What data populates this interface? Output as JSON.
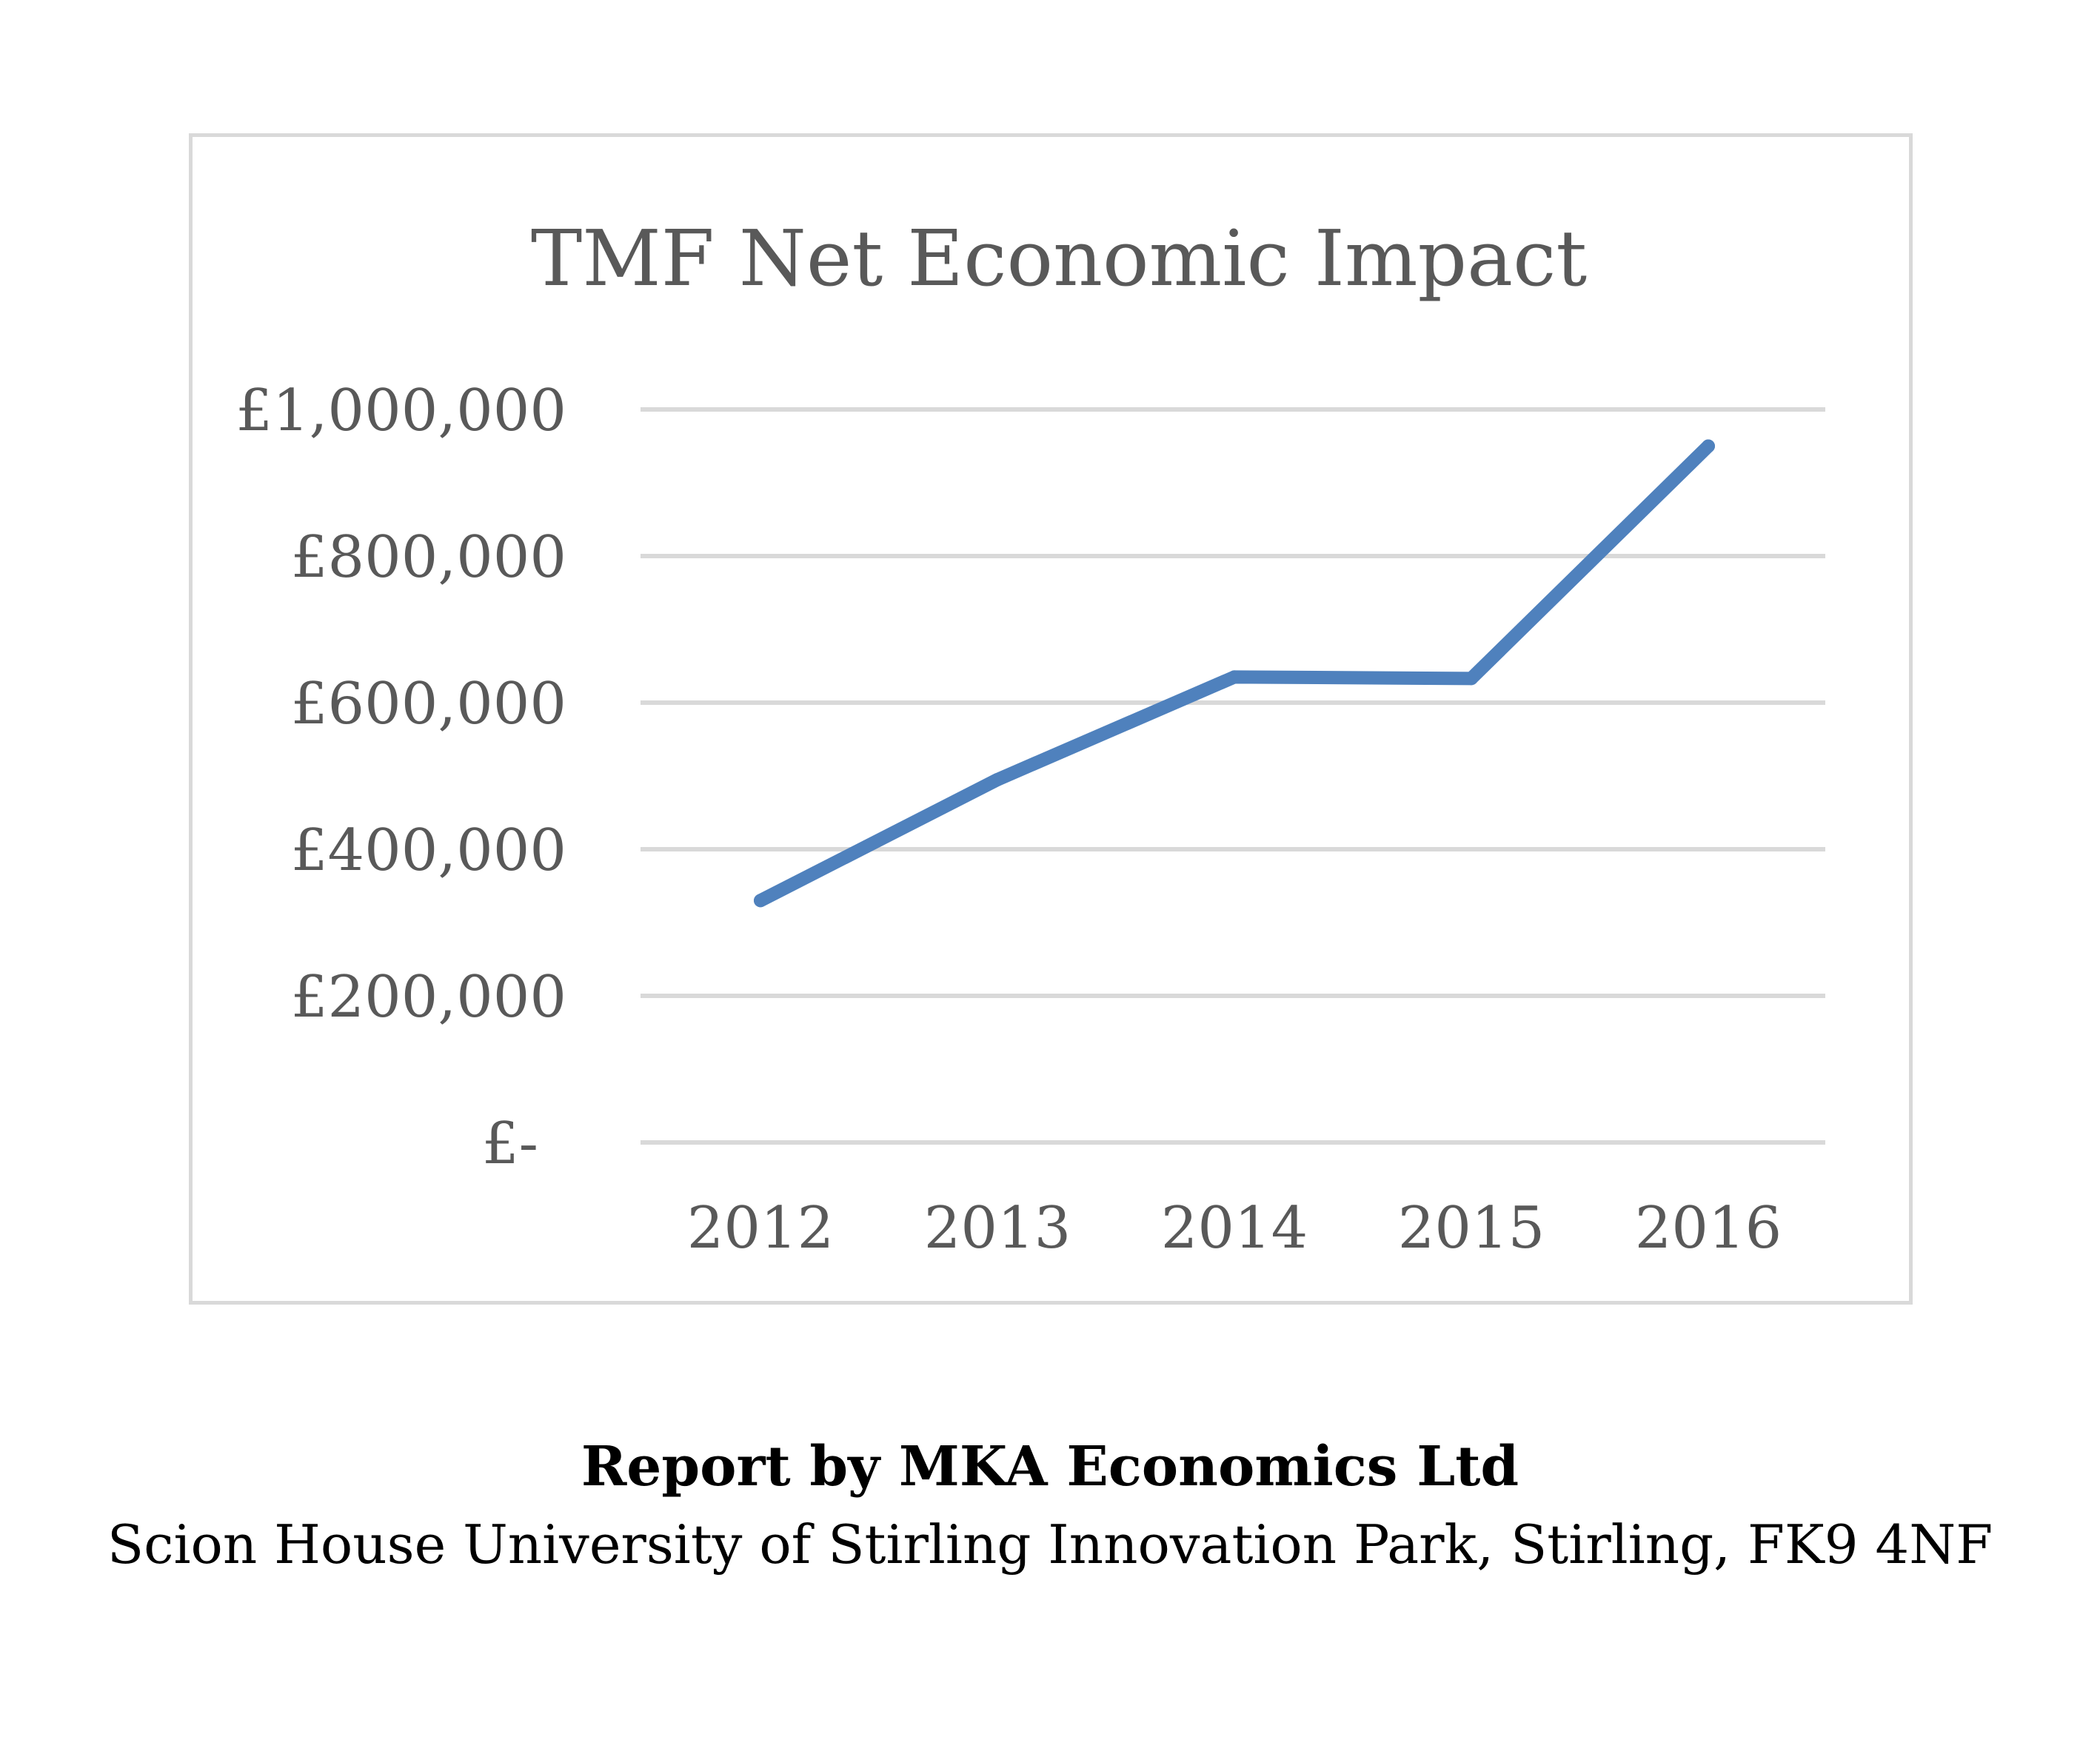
{
  "colors": {
    "series": "#4f81bd",
    "gridline": "#d9d9d9",
    "text": "#595959",
    "frame": "#d9d9d9"
  },
  "chart_data": {
    "type": "line",
    "title": "TMF Net Economic Impact",
    "xlabel": "",
    "ylabel": "",
    "categories": [
      "2012",
      "2013",
      "2014",
      "2015",
      "2016"
    ],
    "series": [
      {
        "values": [
          330000,
          495000,
          635000,
          633000,
          950000
        ]
      }
    ],
    "ylim": [
      0,
      1000000
    ],
    "y_ticks": [
      0,
      200000,
      400000,
      600000,
      800000,
      1000000
    ],
    "y_tick_labels": [
      "£-",
      "£200,000",
      "£400,000",
      "£600,000",
      "£800,000",
      "£1,000,000"
    ],
    "grid": true,
    "legend": "none"
  },
  "footer": {
    "title": "Report by MKA Economics Ltd",
    "address": "Scion House University of Stirling Innovation Park, Stirling, FK9 4NF"
  }
}
